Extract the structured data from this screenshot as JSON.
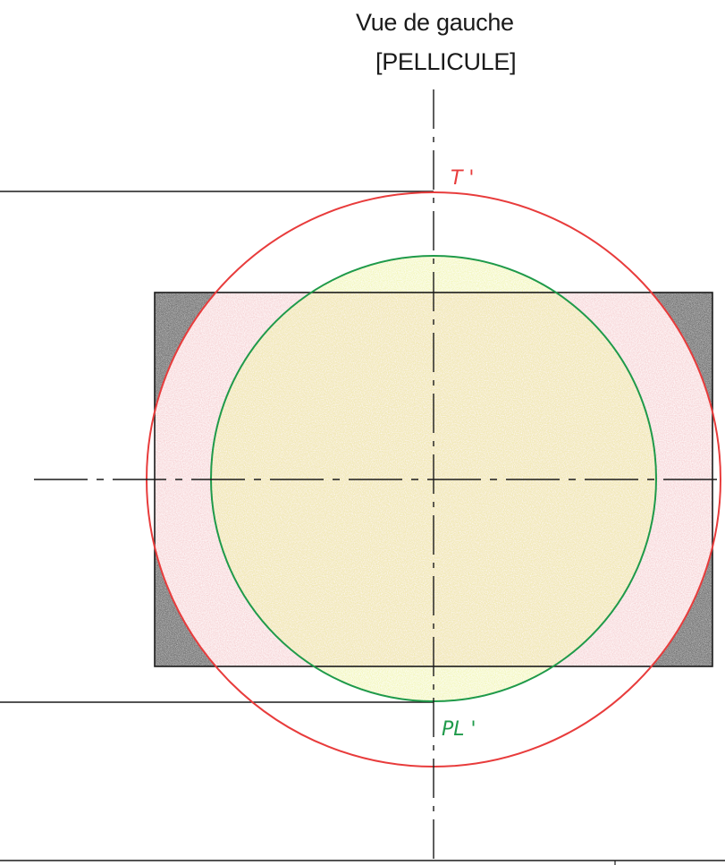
{
  "title": {
    "line1": "Vue de gauche",
    "line2": "[PELLICULE]"
  },
  "labels": {
    "top": "T '",
    "bottom": "PL '"
  },
  "colors": {
    "ink": "#1a1a1a",
    "outer_circle": "#e83c3c",
    "inner_circle": "#1f9a4a",
    "red_fill": "#f4c6c9",
    "yellow_fill": "#eef3a4",
    "grey_fill": "#5a5a5a",
    "label_top": "#e83c3c",
    "label_bottom": "#1f9a4a"
  }
}
